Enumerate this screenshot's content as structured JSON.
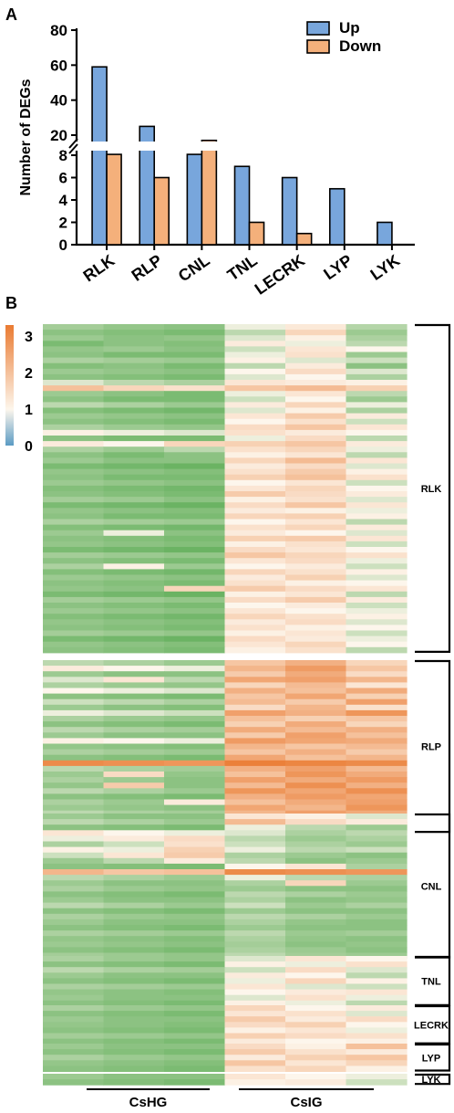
{
  "panels": {
    "a": "A",
    "b": "B"
  },
  "chart_data": [
    {
      "type": "bar",
      "panel": "A",
      "categories": [
        "RLK",
        "RLP",
        "CNL",
        "TNL",
        "LECRK",
        "LYP",
        "LYK"
      ],
      "series": [
        {
          "name": "Up",
          "color": "#78a6dc",
          "values": [
            59,
            25,
            9,
            7,
            6,
            5,
            2
          ]
        },
        {
          "name": "Down",
          "color": "#f4b07b",
          "values": [
            9,
            6,
            17,
            2,
            1,
            0,
            0
          ]
        }
      ],
      "ylabel": "Number of DEGs",
      "y_lower_ticks": [
        0,
        2,
        4,
        6,
        8
      ],
      "y_upper_ticks": [
        20,
        40,
        60,
        80
      ],
      "y_break": [
        8,
        20
      ],
      "ylim": [
        0,
        80
      ],
      "legend_position": "top-right",
      "grid": false
    },
    {
      "type": "heatmap",
      "panel": "B",
      "colorbar": {
        "ticks": [
          "3",
          "2",
          "1",
          "0"
        ],
        "min": 0,
        "max": 3.3,
        "colors": [
          "#5b9bc4",
          "#fdf6ec",
          "#ea7b32"
        ]
      },
      "column_groups": [
        {
          "label": "CsHG",
          "columns": 3
        },
        {
          "label": "CsIG",
          "columns": 3
        }
      ],
      "row_groups": [
        {
          "label": "RLK",
          "rows": 59
        },
        {
          "label": "RLP",
          "rows": 31
        },
        {
          "label": "CNL",
          "rows": 26
        },
        {
          "label": "TNL",
          "rows": 9
        },
        {
          "label": "LECRK",
          "rows": 7
        },
        {
          "label": "LYP",
          "rows": 5
        },
        {
          "label": "LYK",
          "rows": 2
        }
      ],
      "rlk_values": [
        [
          0.45,
          0.35,
          0.3,
          0.9,
          1.25,
          0.55
        ],
        [
          0.3,
          0.25,
          0.2,
          0.6,
          1.6,
          0.4
        ],
        [
          0.4,
          0.3,
          0.35,
          0.8,
          1.1,
          0.5
        ],
        [
          0.2,
          0.3,
          0.25,
          1.2,
          0.9,
          0.6
        ],
        [
          0.35,
          0.4,
          0.3,
          0.7,
          1.3,
          1.0
        ],
        [
          0.3,
          0.2,
          0.2,
          0.9,
          1.4,
          0.4
        ],
        [
          0.5,
          0.45,
          0.4,
          1.1,
          0.8,
          0.7
        ],
        [
          0.25,
          0.3,
          0.2,
          0.6,
          1.2,
          0.3
        ],
        [
          0.4,
          0.35,
          0.3,
          1.0,
          1.5,
          0.8
        ],
        [
          0.3,
          0.25,
          0.2,
          0.8,
          1.0,
          0.5
        ],
        [
          0.8,
          0.6,
          0.5,
          1.3,
          1.2,
          1.1
        ],
        [
          2.0,
          1.6,
          1.4,
          1.9,
          2.1,
          1.7
        ],
        [
          0.4,
          0.3,
          0.2,
          0.9,
          1.3,
          0.6
        ],
        [
          0.3,
          0.2,
          0.2,
          0.7,
          1.0,
          0.4
        ],
        [
          0.6,
          0.5,
          0.4,
          1.2,
          1.6,
          0.9
        ],
        [
          0.25,
          0.2,
          0.15,
          0.8,
          1.1,
          0.5
        ],
        [
          0.4,
          0.35,
          0.3,
          1.3,
          1.8,
          1.2
        ],
        [
          0.3,
          0.25,
          0.2,
          1.0,
          1.4,
          0.7
        ],
        [
          0.5,
          0.4,
          0.35,
          1.5,
          1.9,
          1.3
        ],
        [
          1.1,
          0.9,
          0.8,
          1.4,
          1.2,
          1.0
        ],
        [
          0.3,
          0.2,
          0.2,
          0.9,
          1.5,
          0.6
        ],
        [
          1.2,
          1.0,
          1.6,
          1.7,
          1.9,
          1.2
        ],
        [
          0.5,
          0.4,
          0.6,
          1.4,
          1.6,
          0.9
        ],
        [
          0.3,
          0.2,
          0.3,
          1.1,
          1.3,
          0.6
        ],
        [
          0.4,
          0.3,
          0.3,
          1.6,
          2.1,
          1.3
        ],
        [
          0.2,
          0.15,
          0.1,
          1.2,
          1.5,
          0.8
        ],
        [
          0.35,
          0.3,
          0.25,
          1.4,
          1.8,
          1.1
        ],
        [
          0.3,
          0.2,
          0.2,
          1.7,
          2.0,
          1.4
        ],
        [
          0.4,
          0.35,
          0.3,
          1.0,
          1.3,
          0.7
        ],
        [
          0.25,
          0.2,
          0.15,
          1.3,
          1.6,
          1.0
        ],
        [
          0.3,
          0.25,
          0.2,
          1.8,
          1.5,
          1.2
        ],
        [
          0.45,
          0.4,
          0.3,
          1.1,
          1.4,
          0.8
        ],
        [
          0.2,
          0.15,
          0.1,
          1.5,
          1.9,
          1.3
        ],
        [
          0.35,
          0.3,
          0.25,
          1.2,
          1.1,
          0.9
        ],
        [
          0.3,
          0.2,
          0.2,
          1.6,
          1.7,
          1.1
        ],
        [
          0.5,
          0.45,
          0.4,
          1.0,
          1.3,
          0.6
        ],
        [
          0.25,
          0.2,
          0.15,
          1.4,
          1.6,
          1.2
        ],
        [
          0.4,
          0.9,
          0.3,
          1.2,
          1.0,
          0.8
        ],
        [
          0.3,
          0.25,
          0.2,
          1.7,
          1.8,
          1.3
        ],
        [
          0.35,
          0.3,
          0.25,
          1.1,
          1.4,
          0.7
        ],
        [
          0.2,
          0.15,
          0.1,
          1.5,
          1.3,
          1.0
        ],
        [
          0.45,
          0.4,
          0.35,
          1.9,
          1.6,
          1.4
        ],
        [
          0.3,
          0.25,
          0.2,
          1.3,
          1.5,
          0.9
        ],
        [
          0.5,
          1.1,
          0.4,
          1.0,
          1.2,
          0.7
        ],
        [
          0.25,
          0.2,
          0.15,
          1.6,
          1.4,
          1.1
        ],
        [
          0.4,
          0.35,
          0.3,
          1.2,
          1.7,
          0.8
        ],
        [
          0.3,
          0.25,
          0.2,
          1.4,
          1.1,
          1.0
        ],
        [
          0.35,
          0.3,
          1.6,
          1.8,
          1.5,
          1.3
        ],
        [
          0.2,
          0.15,
          0.1,
          1.1,
          1.3,
          0.6
        ],
        [
          0.45,
          0.4,
          0.35,
          1.5,
          1.8,
          1.2
        ],
        [
          0.3,
          0.25,
          0.2,
          1.0,
          1.2,
          0.7
        ],
        [
          0.4,
          0.35,
          0.3,
          1.3,
          1.0,
          0.9
        ],
        [
          0.25,
          0.2,
          0.15,
          1.6,
          1.4,
          1.1
        ],
        [
          0.35,
          0.3,
          0.25,
          1.2,
          1.5,
          0.8
        ],
        [
          0.3,
          0.25,
          0.2,
          1.4,
          1.1,
          1.0
        ],
        [
          0.45,
          0.4,
          0.35,
          1.1,
          1.3,
          0.7
        ],
        [
          0.2,
          0.15,
          0.1,
          1.5,
          1.2,
          0.9
        ],
        [
          0.35,
          0.3,
          0.25,
          1.3,
          1.6,
          1.0
        ],
        [
          0.3,
          0.25,
          0.2,
          1.1,
          1.4,
          0.6
        ]
      ],
      "rlp_values": [
        [
          0.6,
          0.5,
          0.4,
          1.9,
          2.3,
          1.6
        ],
        [
          1.2,
          1.0,
          0.9,
          2.2,
          2.7,
          1.9
        ],
        [
          0.4,
          0.3,
          0.3,
          1.8,
          2.4,
          1.5
        ],
        [
          0.8,
          1.3,
          0.6,
          2.5,
          2.6,
          2.2
        ],
        [
          0.5,
          0.4,
          0.35,
          1.6,
          2.1,
          1.3
        ],
        [
          1.0,
          0.9,
          0.8,
          2.3,
          2.0,
          2.4
        ],
        [
          0.3,
          0.25,
          0.2,
          1.9,
          2.5,
          1.7
        ],
        [
          0.7,
          0.6,
          0.5,
          2.1,
          1.8,
          2.6
        ],
        [
          0.4,
          0.3,
          0.25,
          1.5,
          2.2,
          1.4
        ],
        [
          0.9,
          0.8,
          0.7,
          2.6,
          2.3,
          2.8
        ],
        [
          0.5,
          0.4,
          0.35,
          2.0,
          1.7,
          1.9
        ],
        [
          0.3,
          0.25,
          0.2,
          1.7,
          2.4,
          1.6
        ],
        [
          0.6,
          0.5,
          0.45,
          2.4,
          2.1,
          2.3
        ],
        [
          0.4,
          0.3,
          0.3,
          1.8,
          2.6,
          2.0
        ],
        [
          1.1,
          1.0,
          0.9,
          2.7,
          2.5,
          2.4
        ],
        [
          0.35,
          0.3,
          0.25,
          2.2,
          1.9,
          2.1
        ],
        [
          0.5,
          0.45,
          0.4,
          1.9,
          2.3,
          1.8
        ],
        [
          0.3,
          0.25,
          0.2,
          2.5,
          2.0,
          2.2
        ],
        [
          3.0,
          2.9,
          2.8,
          3.2,
          3.1,
          3.0
        ],
        [
          0.6,
          0.5,
          0.45,
          2.3,
          2.6,
          2.1
        ],
        [
          0.4,
          1.5,
          0.35,
          2.0,
          2.8,
          2.4
        ],
        [
          0.5,
          0.4,
          0.3,
          2.6,
          2.4,
          2.7
        ],
        [
          0.35,
          1.8,
          0.3,
          2.1,
          2.9,
          2.3
        ],
        [
          0.6,
          0.5,
          0.4,
          2.8,
          2.5,
          2.9
        ],
        [
          0.3,
          0.25,
          0.2,
          2.3,
          2.7,
          2.5
        ],
        [
          0.5,
          0.4,
          1.2,
          2.0,
          2.4,
          2.6
        ],
        [
          0.4,
          0.35,
          0.3,
          2.5,
          2.2,
          2.8
        ],
        [
          0.6,
          0.5,
          0.45,
          2.2,
          2.6,
          2.4
        ],
        [
          0.3,
          0.25,
          0.2,
          1.9,
          2.1,
          2.0
        ],
        [
          0.5,
          0.45,
          0.4,
          2.4,
          2.3,
          2.5
        ],
        [
          0.4,
          0.3,
          0.3,
          1.7,
          1.9,
          1.8
        ]
      ],
      "cnl_values": [
        [
          0.4,
          0.3,
          0.3,
          1.3,
          1.1,
          0.8
        ],
        [
          0.6,
          0.5,
          0.4,
          2.1,
          1.5,
          1.2
        ],
        [
          0.3,
          0.25,
          0.2,
          0.9,
          0.6,
          0.4
        ],
        [
          1.3,
          1.0,
          0.9,
          0.8,
          0.5,
          0.6
        ],
        [
          0.9,
          1.2,
          1.5,
          0.6,
          0.4,
          0.5
        ],
        [
          0.5,
          0.7,
          1.4,
          0.7,
          0.5,
          0.4
        ],
        [
          1.1,
          0.9,
          1.7,
          0.9,
          0.6,
          0.7
        ],
        [
          0.7,
          1.3,
          1.8,
          0.5,
          0.4,
          0.3
        ],
        [
          0.4,
          0.6,
          1.2,
          0.6,
          0.3,
          0.4
        ],
        [
          0.3,
          0.25,
          0.2,
          1.0,
          1.3,
          0.5
        ],
        [
          2.2,
          1.9,
          2.0,
          3.0,
          2.9,
          2.8
        ],
        [
          0.6,
          0.5,
          0.4,
          0.9,
          0.6,
          0.5
        ],
        [
          0.4,
          0.3,
          0.3,
          0.5,
          1.6,
          0.4
        ],
        [
          0.5,
          0.4,
          0.35,
          0.4,
          0.3,
          0.3
        ],
        [
          0.3,
          0.25,
          0.2,
          0.6,
          0.5,
          0.4
        ],
        [
          0.4,
          0.3,
          0.3,
          0.5,
          0.3,
          0.35
        ],
        [
          0.6,
          0.5,
          0.4,
          0.7,
          0.4,
          0.5
        ],
        [
          0.3,
          0.25,
          0.2,
          0.4,
          0.3,
          0.3
        ],
        [
          0.5,
          0.4,
          0.35,
          0.6,
          0.5,
          0.4
        ],
        [
          0.4,
          0.3,
          0.3,
          0.5,
          0.35,
          0.3
        ],
        [
          0.3,
          0.25,
          0.2,
          0.4,
          0.3,
          0.3
        ],
        [
          0.5,
          0.45,
          0.4,
          0.6,
          0.4,
          0.45
        ],
        [
          0.35,
          0.3,
          0.25,
          0.5,
          0.35,
          0.3
        ],
        [
          0.4,
          0.35,
          0.3,
          0.45,
          0.3,
          0.35
        ],
        [
          0.3,
          0.25,
          0.2,
          0.5,
          0.4,
          0.3
        ],
        [
          0.45,
          0.4,
          0.35,
          0.6,
          0.45,
          0.4
        ]
      ],
      "tnl_values": [
        [
          0.5,
          0.4,
          0.35,
          0.8,
          1.3,
          1.0
        ],
        [
          0.3,
          0.25,
          0.2,
          1.1,
          0.9,
          1.4
        ],
        [
          0.6,
          0.5,
          0.45,
          0.7,
          1.5,
          0.8
        ],
        [
          0.4,
          0.3,
          0.3,
          1.2,
          1.0,
          0.6
        ],
        [
          0.3,
          0.25,
          0.2,
          0.9,
          1.6,
          1.1
        ],
        [
          0.5,
          0.45,
          0.4,
          1.3,
          0.8,
          0.7
        ],
        [
          0.35,
          0.3,
          0.25,
          1.0,
          1.2,
          1.3
        ],
        [
          0.4,
          0.3,
          0.3,
          0.8,
          1.4,
          0.9
        ],
        [
          0.3,
          0.25,
          0.2,
          1.1,
          0.9,
          0.6
        ]
      ],
      "lecrk_values": [
        [
          0.5,
          0.4,
          0.35,
          1.6,
          1.0,
          1.2
        ],
        [
          0.3,
          0.25,
          0.2,
          1.3,
          1.4,
          0.8
        ],
        [
          0.4,
          0.3,
          0.3,
          1.8,
          1.2,
          1.5
        ],
        [
          0.35,
          0.3,
          0.25,
          1.5,
          1.7,
          1.0
        ],
        [
          0.3,
          0.25,
          0.2,
          1.1,
          1.3,
          0.9
        ],
        [
          0.45,
          0.4,
          0.35,
          1.7,
          1.5,
          1.4
        ],
        [
          0.3,
          0.25,
          0.2,
          1.2,
          1.0,
          1.1
        ]
      ],
      "lyp_values": [
        [
          0.4,
          0.3,
          0.3,
          1.5,
          1.1,
          2.0
        ],
        [
          0.3,
          0.25,
          0.2,
          1.8,
          1.4,
          1.2
        ],
        [
          0.5,
          0.4,
          0.35,
          1.2,
          1.7,
          1.9
        ],
        [
          0.35,
          0.3,
          0.25,
          1.9,
          1.3,
          1.6
        ],
        [
          0.3,
          0.25,
          0.2,
          1.4,
          1.6,
          1.1
        ]
      ],
      "lyk_values": [
        [
          0.4,
          0.3,
          0.3,
          1.3,
          1.0,
          0.9
        ],
        [
          0.3,
          0.25,
          0.2,
          1.1,
          1.2,
          0.7
        ]
      ]
    }
  ]
}
